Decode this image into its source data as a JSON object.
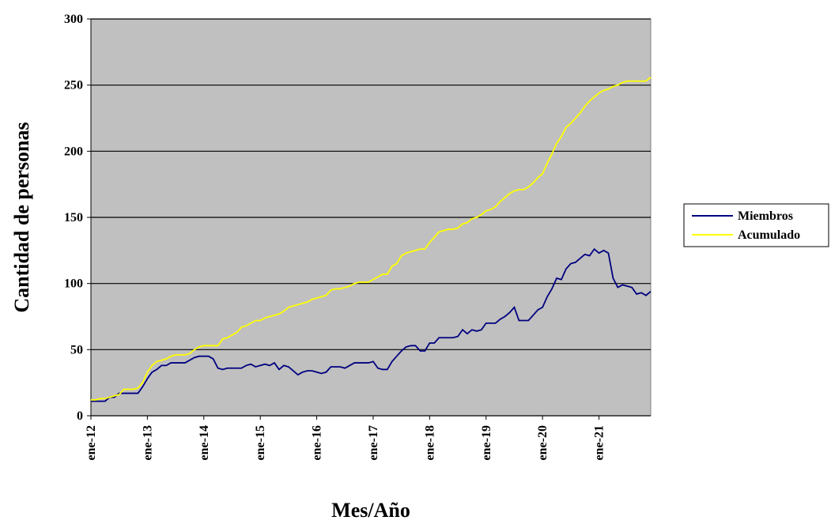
{
  "chart_data": {
    "type": "line",
    "x_label": "Mes/Año",
    "y_label": "Cantidad de personas",
    "categories": [
      "ene-12",
      null,
      null,
      null,
      null,
      null,
      null,
      null,
      null,
      null,
      null,
      null,
      "ene-13",
      null,
      null,
      null,
      null,
      null,
      null,
      null,
      null,
      null,
      null,
      null,
      "ene-14",
      null,
      null,
      null,
      null,
      null,
      null,
      null,
      null,
      null,
      null,
      null,
      "ene-15",
      null,
      null,
      null,
      null,
      null,
      null,
      null,
      null,
      null,
      null,
      null,
      "ene-16",
      null,
      null,
      null,
      null,
      null,
      null,
      null,
      null,
      null,
      null,
      null,
      "ene-17",
      null,
      null,
      null,
      null,
      null,
      null,
      null,
      null,
      null,
      null,
      null,
      "ene-18",
      null,
      null,
      null,
      null,
      null,
      null,
      null,
      null,
      null,
      null,
      null,
      "ene-19",
      null,
      null,
      null,
      null,
      null,
      null,
      null,
      null,
      null,
      null,
      null,
      "ene-20",
      null,
      null,
      null,
      null,
      null,
      null,
      null,
      null,
      null,
      null,
      null,
      "ene-21",
      null,
      null,
      null,
      null,
      null,
      null,
      null,
      null,
      null,
      null,
      null
    ],
    "series": [
      {
        "name": "Miembros",
        "color": "#000080",
        "values": [
          11,
          11,
          11,
          11,
          14,
          14,
          17,
          17,
          17,
          17,
          17,
          22,
          28,
          33,
          35,
          38,
          38,
          40,
          40,
          40,
          40,
          42,
          44,
          45,
          45,
          45,
          43,
          36,
          35,
          36,
          36,
          36,
          36,
          38,
          39,
          37,
          38,
          39,
          38,
          40,
          35,
          38,
          37,
          34,
          31,
          33,
          34,
          34,
          33,
          32,
          33,
          37,
          37,
          37,
          36,
          38,
          40,
          40,
          40,
          40,
          41,
          36,
          35,
          35,
          41,
          45,
          49,
          52,
          53,
          53,
          49,
          49,
          55,
          55,
          59,
          59,
          59,
          59,
          60,
          65,
          62,
          65,
          64,
          65,
          70,
          70,
          70,
          73,
          75,
          78,
          82,
          72,
          72,
          72,
          76,
          80,
          82,
          90,
          96,
          104,
          103,
          111,
          115,
          116,
          119,
          122,
          121,
          126,
          123,
          125,
          123,
          104,
          97,
          99,
          98,
          97,
          92,
          93,
          91,
          94
        ]
      },
      {
        "name": "Acumulado",
        "color": "#ffff00",
        "values": [
          12,
          12,
          13,
          13,
          14,
          15,
          16,
          20,
          20,
          20,
          21,
          25,
          33,
          38,
          41,
          42,
          43,
          45,
          46,
          46,
          46,
          47,
          50,
          52,
          53,
          53,
          53,
          53,
          58,
          59,
          61,
          63,
          67,
          68,
          70,
          72,
          72,
          74,
          75,
          76,
          77,
          79,
          82,
          83,
          84,
          85,
          86,
          88,
          89,
          90,
          91,
          95,
          96,
          96,
          97,
          98,
          100,
          101,
          101,
          101,
          103,
          105,
          107,
          107,
          113,
          115,
          121,
          123,
          124,
          125,
          126,
          126,
          131,
          135,
          139,
          140,
          141,
          141,
          142,
          145,
          146,
          149,
          150,
          152,
          155,
          156,
          158,
          162,
          165,
          168,
          170,
          171,
          171,
          173,
          176,
          180,
          183,
          191,
          198,
          206,
          211,
          218,
          221,
          225,
          229,
          234,
          238,
          241,
          244,
          246,
          247,
          249,
          250,
          252,
          253,
          253,
          253,
          253,
          253,
          256
        ]
      }
    ],
    "ylim": [
      0,
      300
    ],
    "yticks": [
      0,
      50,
      100,
      150,
      200,
      250,
      300
    ],
    "grid": true,
    "plot_background": "#c0c0c0",
    "legend": "right"
  }
}
